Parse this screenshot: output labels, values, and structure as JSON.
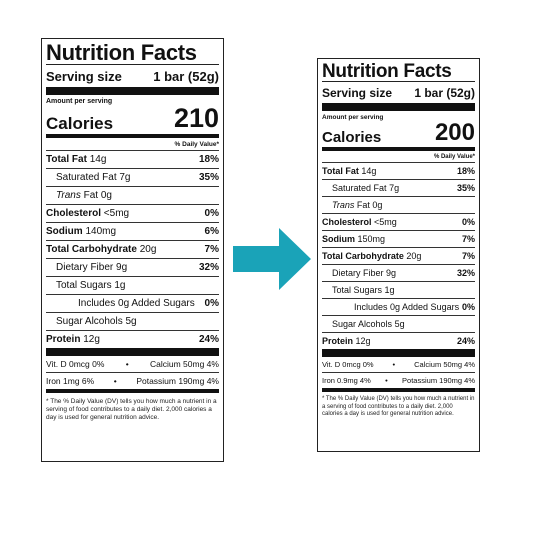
{
  "left": {
    "title": "Nutrition Facts",
    "serving_label": "Serving size",
    "serving_value": "1 bar (52g)",
    "amount_per_serving": "Amount per serving",
    "calories_label": "Calories",
    "calories_value": "210",
    "dv_header": "% Daily Value*",
    "rows": [
      {
        "name": "Total Fat",
        "amount": "14g",
        "dv": "18%"
      },
      {
        "name": "Saturated Fat",
        "amount": "7g",
        "dv": "35%"
      },
      {
        "name": "Trans",
        "name_rest": "Fat",
        "amount": "0g"
      },
      {
        "name": "Cholesterol",
        "amount": "<5mg",
        "dv": "0%"
      },
      {
        "name": "Sodium",
        "amount": "140mg",
        "dv": "6%"
      },
      {
        "name": "Total Carbohydrate",
        "amount": "20g",
        "dv": "7%"
      },
      {
        "name": "Dietary Fiber",
        "amount": "9g",
        "dv": "32%"
      },
      {
        "name": "Total Sugars",
        "amount": "1g"
      },
      {
        "name": "Includes 0g Added Sugars",
        "dv": "0%"
      },
      {
        "name": "Sugar Alcohols",
        "amount": "5g"
      },
      {
        "name": "Protein",
        "amount": "12g",
        "dv": "24%"
      }
    ],
    "vitamins": [
      {
        "a": "Vit. D 0mcg 0%",
        "b": "Calcium 50mg 4%"
      },
      {
        "a": "Iron 1mg 6%",
        "b": "Potassium 190mg 4%"
      }
    ],
    "footnote": "* The % Daily Value (DV) tells you how much a nutrient in a serving of food contributes to a daily diet. 2,000 calories a day is used for general nutrition advice."
  },
  "right": {
    "title": "Nutrition Facts",
    "serving_label": "Serving size",
    "serving_value": "1 bar (52g)",
    "amount_per_serving": "Amount per serving",
    "calories_label": "Calories",
    "calories_value": "200",
    "dv_header": "% Daily Value*",
    "rows": [
      {
        "name": "Total Fat",
        "amount": "14g",
        "dv": "18%"
      },
      {
        "name": "Saturated Fat",
        "amount": "7g",
        "dv": "35%"
      },
      {
        "name": "Trans",
        "name_rest": "Fat",
        "amount": "0g"
      },
      {
        "name": "Cholesterol",
        "amount": "<5mg",
        "dv": "0%"
      },
      {
        "name": "Sodium",
        "amount": "150mg",
        "dv": "7%"
      },
      {
        "name": "Total Carbohydrate",
        "amount": "20g",
        "dv": "7%"
      },
      {
        "name": "Dietary Fiber",
        "amount": "9g",
        "dv": "32%"
      },
      {
        "name": "Total Sugars",
        "amount": "1g"
      },
      {
        "name": "Includes 0g Added Sugars",
        "dv": "0%"
      },
      {
        "name": "Sugar Alcohols",
        "amount": "5g"
      },
      {
        "name": "Protein",
        "amount": "12g",
        "dv": "24%"
      }
    ],
    "vitamins": [
      {
        "a": "Vit. D 0mcg 0%",
        "b": "Calcium 50mg 4%"
      },
      {
        "a": "Iron 0.9mg 4%",
        "b": "Potassium 190mg 4%"
      }
    ],
    "footnote": "* The % Daily Value (DV) tells you how much a nutrient in a serving of food contributes to a daily diet. 2,000 calories a day is used for general nutrition advice."
  },
  "arrow": {
    "icon": "arrow-right-icon",
    "color": "#1aa3b8"
  }
}
